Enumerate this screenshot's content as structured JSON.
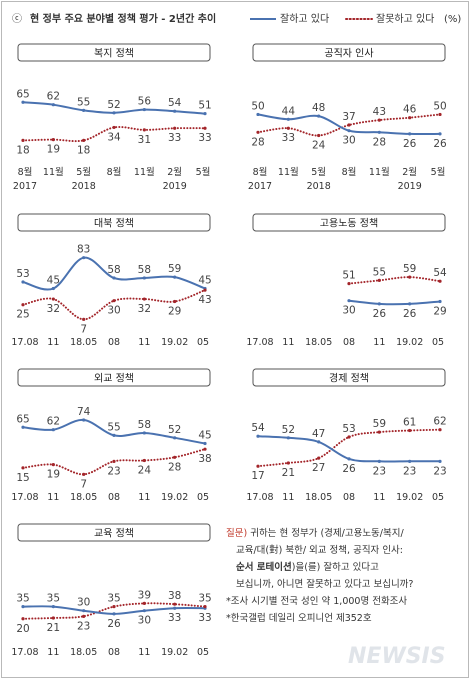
{
  "header": {
    "copyright": "ⓒ",
    "title": "현 정부 주요 분야별 정책 평가 - 2년간 추이",
    "legend_good": "잘하고 있다",
    "legend_bad": "잘못하고 있다",
    "unit": "(%)"
  },
  "colors": {
    "good": "#4a72b0",
    "bad": "#a3252a"
  },
  "chart_data": [
    {
      "type": "line",
      "title": "복지 정책",
      "categories": [
        "8월",
        "11월",
        "5월",
        "8월",
        "11월",
        "2월",
        "5월"
      ],
      "years": [
        {
          "idx": 0,
          "label": "2017"
        },
        {
          "idx": 2,
          "label": "2018"
        },
        {
          "idx": 5,
          "label": "2019"
        }
      ],
      "series": [
        {
          "name": "잘하고 있다",
          "values": [
            65,
            62,
            55,
            52,
            56,
            54,
            51
          ]
        },
        {
          "name": "잘못하고 있다",
          "values": [
            18,
            19,
            18,
            34,
            31,
            33,
            33
          ]
        }
      ]
    },
    {
      "type": "line",
      "title": "공직자 인사",
      "categories": [
        "8월",
        "11월",
        "5월",
        "8월",
        "11월",
        "2월",
        "5월"
      ],
      "years": [
        {
          "idx": 0,
          "label": "2017"
        },
        {
          "idx": 2,
          "label": "2018"
        },
        {
          "idx": 5,
          "label": "2019"
        }
      ],
      "series": [
        {
          "name": "잘하고 있다",
          "values": [
            50,
            44,
            48,
            30,
            28,
            26,
            26
          ]
        },
        {
          "name": "잘못하고 있다",
          "values": [
            28,
            33,
            24,
            37,
            43,
            46,
            50
          ]
        }
      ]
    },
    {
      "type": "line",
      "title": "대북 정책",
      "categories": [
        "17.08",
        "11",
        "18.05",
        "08",
        "11",
        "19.02",
        "05"
      ],
      "series": [
        {
          "name": "잘하고 있다",
          "values": [
            53,
            45,
            83,
            58,
            58,
            59,
            45
          ]
        },
        {
          "name": "잘못하고 있다",
          "values": [
            25,
            32,
            7,
            30,
            32,
            29,
            43
          ]
        }
      ]
    },
    {
      "type": "line",
      "title": "고용노동 정책",
      "categories": [
        "17.08",
        "11",
        "18.05",
        "08",
        "11",
        "19.02",
        "05"
      ],
      "series": [
        {
          "name": "잘하고 있다",
          "values": [
            null,
            null,
            null,
            30,
            26,
            26,
            29
          ]
        },
        {
          "name": "잘못하고 있다",
          "values": [
            null,
            null,
            null,
            51,
            55,
            59,
            54
          ]
        }
      ]
    },
    {
      "type": "line",
      "title": "외교 정책",
      "categories": [
        "17.08",
        "11",
        "18.05",
        "08",
        "11",
        "19.02",
        "05"
      ],
      "series": [
        {
          "name": "잘하고 있다",
          "values": [
            65,
            62,
            74,
            55,
            58,
            52,
            45
          ]
        },
        {
          "name": "잘못하고 있다",
          "values": [
            15,
            19,
            7,
            23,
            24,
            28,
            38
          ]
        }
      ]
    },
    {
      "type": "line",
      "title": "경제 정책",
      "categories": [
        "17.08",
        "11",
        "18.05",
        "08",
        "11",
        "19.02",
        "05"
      ],
      "series": [
        {
          "name": "잘하고 있다",
          "values": [
            54,
            52,
            47,
            26,
            23,
            23,
            23
          ]
        },
        {
          "name": "잘못하고 있다",
          "values": [
            17,
            21,
            27,
            53,
            59,
            61,
            62
          ]
        }
      ]
    },
    {
      "type": "line",
      "title": "교육 정책",
      "categories": [
        "17.08",
        "11",
        "18.05",
        "08",
        "11",
        "19.02",
        "05"
      ],
      "series": [
        {
          "name": "잘하고 있다",
          "values": [
            35,
            35,
            30,
            26,
            30,
            33,
            33
          ]
        },
        {
          "name": "잘못하고 있다",
          "values": [
            20,
            21,
            23,
            35,
            39,
            38,
            35
          ]
        }
      ]
    }
  ],
  "note": {
    "q_label": "질문)",
    "q_line1": " 귀하는 현 정부가 (경제/고용노동/복지/",
    "q_line2": "교육/대(對) 북한/ 외교 정책, 공직자 인사:",
    "q_line3_bold": "순서 로테이션",
    "q_line3_rest": ")을(를) 잘하고 있다고",
    "q_line4": "보십니까, 아니면 잘못하고 있다고 보십니까?",
    "source1": "*조사 시기별 전국 성인 약 1,000명 전화조사",
    "source2": "*한국갤럽 데일리 오피니언 제352호",
    "watermark": "NEWSIS"
  }
}
